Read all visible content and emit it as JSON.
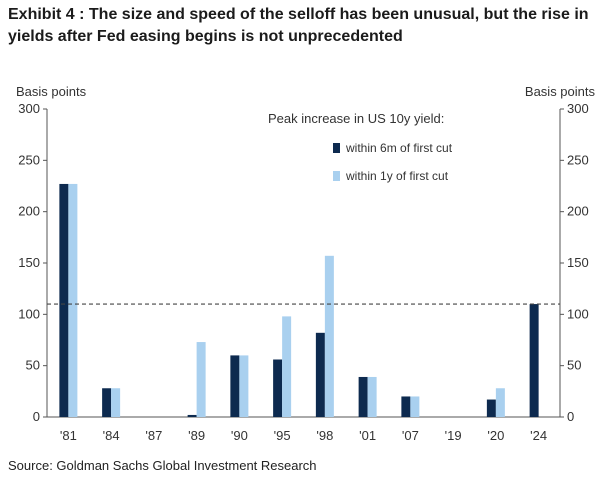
{
  "title": "Exhibit 4 : The size and speed of the selloff has been unusual, but the rise in yields after Fed easing begins is not unprecedented",
  "source": "Source: Goldman Sachs Global Investment Research",
  "chart_data": {
    "type": "bar",
    "categories": [
      "'81",
      "'84",
      "'87",
      "'89",
      "'90",
      "'95",
      "'98",
      "'01",
      "'07",
      "'19",
      "'20",
      "'24"
    ],
    "series": [
      {
        "name": "within 6m of first cut",
        "color": "#0d2a4f",
        "values": [
          227,
          28,
          0,
          2,
          60,
          56,
          82,
          39,
          20,
          0,
          17,
          110
        ]
      },
      {
        "name": "within 1y of first cut",
        "color": "#a9d0ef",
        "values": [
          227,
          28,
          0,
          73,
          60,
          98,
          157,
          39,
          20,
          0,
          28,
          null
        ]
      }
    ],
    "legend_title": "Peak increase in US 10y yield:",
    "ylabel_left": "Basis points",
    "ylabel_right": "Basis points",
    "ylim": [
      0,
      300
    ],
    "yticks": [
      0,
      50,
      100,
      150,
      200,
      250,
      300
    ],
    "reference_line": 110,
    "grid": false,
    "legend_position": "top-right"
  }
}
